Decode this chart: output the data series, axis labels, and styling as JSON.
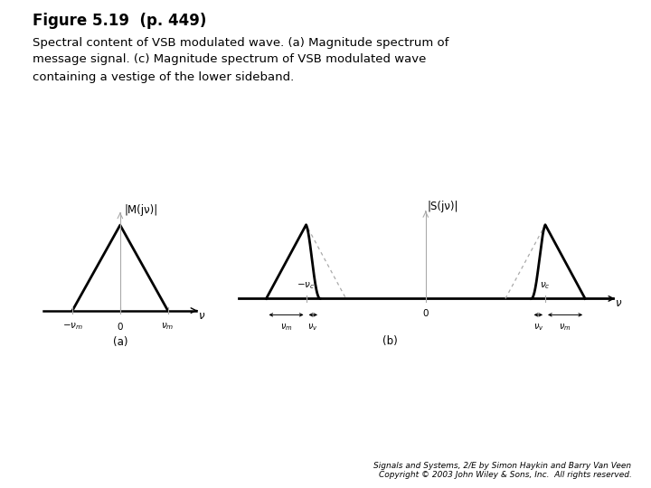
{
  "title": "Figure 5.19  (p. 449)",
  "subtitle": "Spectral content of VSB modulated wave. (a) Magnitude spectrum of\nmessage signal. (c) Magnitude spectrum of VSB modulated wave\ncontaining a vestige of the lower sideband.",
  "title_fontsize": 12,
  "subtitle_fontsize": 9.5,
  "background_color": "#ffffff",
  "label_a": "(a)",
  "label_b": "(b)",
  "ylabel_a": "|M(jν)|",
  "ylabel_b": "|S(jν)|",
  "xlabel": "ν",
  "vm": 1.0,
  "vc": 3.0,
  "vv": 0.35,
  "plot_color": "#000000",
  "gray_color": "#aaaaaa",
  "footer": "Signals and Systems, 2/E by Simon Haykin and Barry Van Veen\nCopyright © 2003 John Wiley & Sons, Inc.  All rights reserved."
}
